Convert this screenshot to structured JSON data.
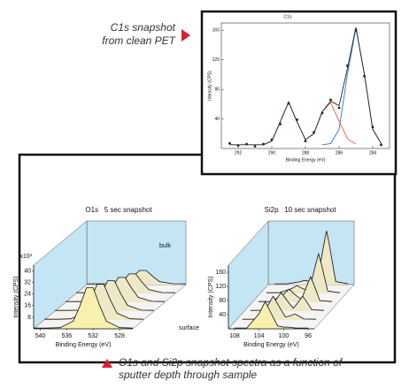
{
  "captions": {
    "inset": [
      "C1s snapshot",
      "from clean PET"
    ],
    "main": [
      "O1s and Si2p snapshot spectra as a function of",
      "sputter depth through sample"
    ]
  },
  "chart_data": [
    {
      "type": "line",
      "title": "C1s",
      "x_label": "Binding Energy (eV)",
      "y_label": "Intensity (CPS)",
      "xlim": [
        293,
        283
      ],
      "xticks": [
        292,
        290,
        288,
        286,
        284
      ],
      "ylim": [
        0,
        170
      ],
      "yticks": [
        40,
        80,
        120,
        160
      ],
      "series": [
        {
          "style": "line",
          "color": "#e0603a",
          "x": [
            290.5,
            290,
            289.5,
            289,
            288.5,
            288,
            287.5,
            287,
            286.5,
            286,
            285.5,
            285
          ],
          "values": [
            5.2,
            9.9,
            36,
            63,
            36,
            12,
            20,
            50,
            62,
            37,
            13,
            6
          ]
        },
        {
          "style": "line",
          "color": "#3b6fd8",
          "x": [
            287,
            286.5,
            286,
            285.5,
            285,
            284.5,
            284,
            283.5
          ],
          "values": [
            5,
            6.7,
            26,
            101,
            163,
            101,
            26,
            6.7
          ]
        },
        {
          "style": "line",
          "color": "#222222",
          "x": [
            292.5,
            292,
            291.5,
            291,
            290.5,
            290,
            289.5,
            289,
            288.5,
            288,
            287.5,
            287,
            286.5,
            286,
            285.5,
            285,
            284.5,
            284,
            283.5
          ],
          "values": [
            5,
            5,
            5,
            5,
            5,
            10,
            36,
            63,
            36,
            12,
            20,
            50,
            64,
            58,
            109,
            164,
            101,
            26,
            7
          ]
        },
        {
          "style": "points",
          "color": "#222222",
          "x": [
            292.5,
            292,
            291.5,
            291,
            290.5,
            290,
            289.5,
            289,
            288.5,
            288,
            287.5,
            287,
            286.5,
            286,
            285.5,
            285,
            284.5,
            284,
            283.5
          ],
          "values": [
            7,
            4,
            6,
            3,
            6,
            12,
            33,
            61,
            39,
            10,
            22,
            48,
            66,
            55,
            112,
            160,
            98,
            29,
            5
          ]
        }
      ]
    },
    {
      "type": "waterfall",
      "title": "O1s   5 sec snapshot",
      "x_label": "Binding Energy (eV)",
      "y_label": "Intensity (CPS)",
      "y_scale_label": "x10³",
      "annotations": [
        "bulk",
        "surface"
      ],
      "wall_color": "#c4e5f4",
      "xlim": [
        541,
        526
      ],
      "xticks": [
        540,
        536,
        532,
        528
      ],
      "ylim": [
        0,
        44
      ],
      "yticks": [
        8,
        16,
        24,
        32,
        40
      ],
      "x": [
        541,
        539,
        537,
        535,
        534,
        533,
        532,
        531,
        530,
        528,
        526
      ],
      "series": [
        {
          "color": "#eee8c6",
          "values": [
            0.5,
            0.5,
            0.6,
            2.1,
            5.6,
            9.8,
            9.8,
            5.6,
            2.1,
            0.6,
            0.5
          ]
        },
        {
          "color": "#eee8c6",
          "values": [
            0.5,
            0.5,
            0.6,
            2.7,
            7.6,
            13.5,
            13.5,
            7.6,
            2.7,
            0.6,
            0.5
          ]
        },
        {
          "color": "#eee8c6",
          "values": [
            0.5,
            0.5,
            0.7,
            3.4,
            9.7,
            17.2,
            17.2,
            9.7,
            3.4,
            0.7,
            0.5
          ]
        },
        {
          "color": "#eee8c6",
          "values": [
            0.5,
            0.5,
            0.7,
            4.0,
            11.7,
            21.0,
            21.0,
            11.7,
            4.0,
            0.7,
            0.5
          ]
        },
        {
          "color": "#eee8c6",
          "values": [
            0.5,
            0.5,
            0.8,
            4.7,
            13.8,
            24.7,
            24.7,
            13.8,
            4.7,
            0.8,
            0.5
          ]
        },
        {
          "color": "#f8f0ae",
          "values": [
            0.5,
            0.5,
            0.8,
            5.3,
            15.8,
            28.4,
            28.4,
            15.8,
            5.3,
            0.8,
            0.5
          ]
        }
      ]
    },
    {
      "type": "waterfall",
      "title": "Si2p   10 sec snapshot",
      "x_label": "Binding Energy (eV)",
      "y_label": "Intensity (CPS)",
      "wall_color": "#c4e5f4",
      "xlim": [
        109,
        95
      ],
      "xticks": [
        108,
        104,
        100,
        96
      ],
      "ylim": [
        0,
        180
      ],
      "yticks": [
        40,
        80,
        120,
        160
      ],
      "x": [
        108,
        106,
        104,
        103,
        102,
        101,
        100,
        99.5,
        99,
        98,
        96
      ],
      "series": [
        {
          "color": "#eee8c6",
          "values": [
            2,
            2,
            7.4,
            12,
            7.4,
            9.5,
            108.5,
            152,
            108.5,
            8.6,
            2
          ]
        },
        {
          "color": "#eee8c6",
          "values": [
            2,
            2.1,
            12.8,
            22,
            12.8,
            8.5,
            80.2,
            112,
            80.1,
            6.8,
            2
          ]
        },
        {
          "color": "#eee8c6",
          "values": [
            2,
            2.1,
            20.9,
            37,
            20.9,
            8.1,
            51.8,
            72,
            51.7,
            5.1,
            2
          ]
        },
        {
          "color": "#eee8c6",
          "values": [
            2,
            2.2,
            29,
            52,
            29,
            8.1,
            30.6,
            42,
            30.4,
            3.8,
            2
          ]
        },
        {
          "color": "#eee8c6",
          "values": [
            2,
            2.3,
            37.1,
            67,
            37.1,
            8.2,
            13,
            17,
            12.7,
            2.7,
            2
          ]
        },
        {
          "color": "#f8f0ae",
          "values": [
            2,
            2.3,
            42.5,
            77,
            42.5,
            8.5,
            4.4,
            5,
            4.1,
            2.1,
            2
          ]
        }
      ]
    }
  ]
}
